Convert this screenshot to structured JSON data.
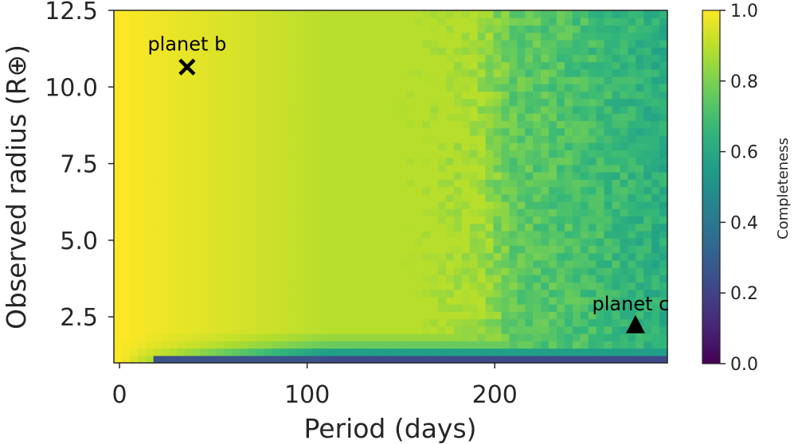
{
  "chart_data": {
    "type": "heatmap",
    "title": "",
    "xlabel": "Period (days)",
    "ylabel": "Observed radius (R⊕)",
    "colorbar_label": "Completeness",
    "colormap": "viridis",
    "xlim": [
      -3,
      292
    ],
    "ylim": [
      1.0,
      12.5
    ],
    "clim": [
      0.0,
      1.0
    ],
    "x_ticks": [
      0,
      100,
      200
    ],
    "y_ticks": [
      2.5,
      5.0,
      7.5,
      10.0,
      12.5
    ],
    "colorbar_ticks": [
      0.0,
      0.2,
      0.4,
      0.6,
      0.8,
      1.0
    ],
    "x_tick_labels": [
      "0",
      "100",
      "200"
    ],
    "y_tick_labels": [
      "2.5",
      "5.0",
      "7.5",
      "10.0",
      "12.5"
    ],
    "colorbar_tick_labels": [
      "0.0",
      "0.2",
      "0.4",
      "0.6",
      "0.8",
      "1.0"
    ],
    "grid": false,
    "x_bin_count": 70,
    "y_bin_count": 48,
    "completeness_profile": {
      "period_days": [
        0,
        80,
        110,
        150,
        190,
        210,
        250,
        292
      ],
      "large_radius_completeness": [
        1.0,
        1.0,
        0.96,
        0.95,
        0.93,
        0.82,
        0.76,
        0.68
      ],
      "small_radius_floor": [
        {
          "radius": 1.0,
          "completeness": 0.1
        },
        {
          "radius": 1.25,
          "completeness": 0.45
        },
        {
          "radius": 1.5,
          "completeness": 0.75
        },
        {
          "radius": 2.0,
          "completeness": 0.9
        }
      ]
    },
    "markers": [
      {
        "label": "planet b",
        "symbol": "x",
        "period": 36,
        "radius": 10.65
      },
      {
        "label": "planet c",
        "symbol": "triangle",
        "period": 275,
        "radius": 2.25
      }
    ]
  }
}
